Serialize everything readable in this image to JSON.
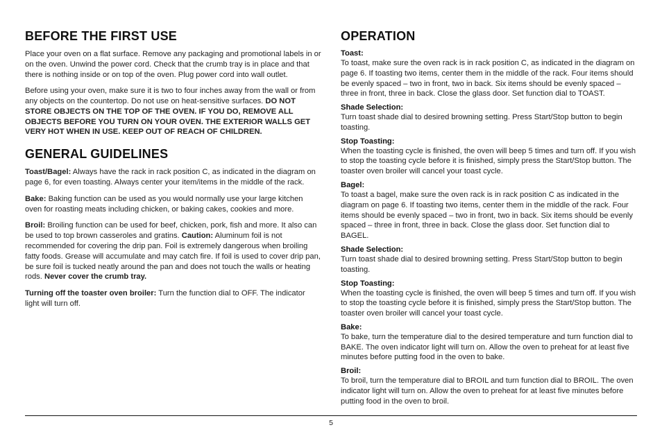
{
  "page_number": "5",
  "left": {
    "h1": "Before the First Use",
    "p1": "Place your oven on a flat surface. Remove any packaging and promotional labels in or on the oven. Unwind the power cord. Check that the crumb tray is in place and that there is nothing inside or on top of the oven. Plug power cord into wall outlet.",
    "p2a": "Before using your oven, make sure it is two to four inches away from the wall or from any objects on the countertop. Do not use on heat-sensitive surfaces. ",
    "p2b": "DO NOT STORE OBJECTS ON THE TOP OF THE OVEN. IF YOU DO, REMOVE ALL OBJECTS BEFORE YOU TURN ON YOUR OVEN. THE EXTERIOR WALLS GET VERY HOT WHEN IN USE. KEEP OUT OF REACH OF CHILDREN.",
    "h2": "General Guidelines",
    "g1a": "Toast/Bagel:",
    "g1b": " Always have the rack in rack position C, as indicated in the diagram on page 6, for even toasting. Always center your item/items in the middle of the rack.",
    "g2a": "Bake:",
    "g2b": " Baking function can be used as you would normally use your large kitchen oven for roasting meats including chicken, or baking cakes, cookies and more.",
    "g3a": "Broil:",
    "g3b": " Broiling function can be used for beef, chicken, pork, fish and more. It also can be used to top brown casseroles and gratins. ",
    "g3c": "Caution:",
    "g3d": " Aluminum foil is not recommended for covering the drip pan. Foil is extremely dangerous when broiling fatty foods. Grease will accumulate and may catch fire. If foil is used to cover drip pan, be sure foil is tucked neatly around the pan and does not touch the walls or heating rods. ",
    "g3e": "Never cover the crumb tray.",
    "g4a": "Turning off the toaster oven broiler:",
    "g4b": " Turn the function dial to OFF. The indicator light will turn off."
  },
  "right": {
    "h1": "Operation",
    "toast_h": "Toast:",
    "toast_p": "To toast, make sure the oven rack is in rack position C, as indicated in the diagram on page 6. If toasting two items, center them in the middle of the rack. Four items should be evenly spaced – two in front, two in back. Six items should be evenly spaced – three in front, three in back. Close the glass door. Set function dial to TOAST.",
    "shade1_h": "Shade Selection:",
    "shade1_p": "Turn toast shade dial to desired browning setting. Press Start/Stop button to begin toasting.",
    "stop1_h": "Stop Toasting:",
    "stop1_p": "When the toasting cycle is finished, the oven will beep 5 times and turn off. If you wish to stop the toasting cycle before it is finished, simply press the Start/Stop button. The toaster oven broiler will cancel your toast cycle.",
    "bagel_h": "Bagel",
    "bagel_p": "To toast a bagel, make sure the oven rack is in rack position C as indicated in the diagram on page 6. If toasting two items, center them in the middle of the rack. Four items should be evenly spaced – two in front, two in back. Six items should be evenly spaced – three in front, three in back. Close the glass door. Set function dial to BAGEL.",
    "shade2_h": "Shade Selection:",
    "shade2_p": "Turn toast shade dial to desired browning setting. Press Start/Stop button to begin toasting.",
    "stop2_h": "Stop Toasting:",
    "stop2_p": "When the toasting cycle is finished, the oven will beep 5 times and turn off. If you wish to stop the toasting cycle before it is finished, simply press the Start/Stop button. The toaster oven broiler will cancel your toast cycle.",
    "bake_h": "Bake",
    "bake_p": "To bake, turn the temperature dial to the desired temperature and turn function dial to BAKE. The oven indicator light will turn on. Allow the oven to preheat for at least five minutes before putting food in the oven to bake.",
    "broil_h": "Broil:",
    "broil_p": "To broil, turn the temperature dial to BROIL and turn function dial to BROIL. The oven indicator light will turn on. Allow the oven to preheat for at least five minutes before putting food in the oven to broil."
  }
}
